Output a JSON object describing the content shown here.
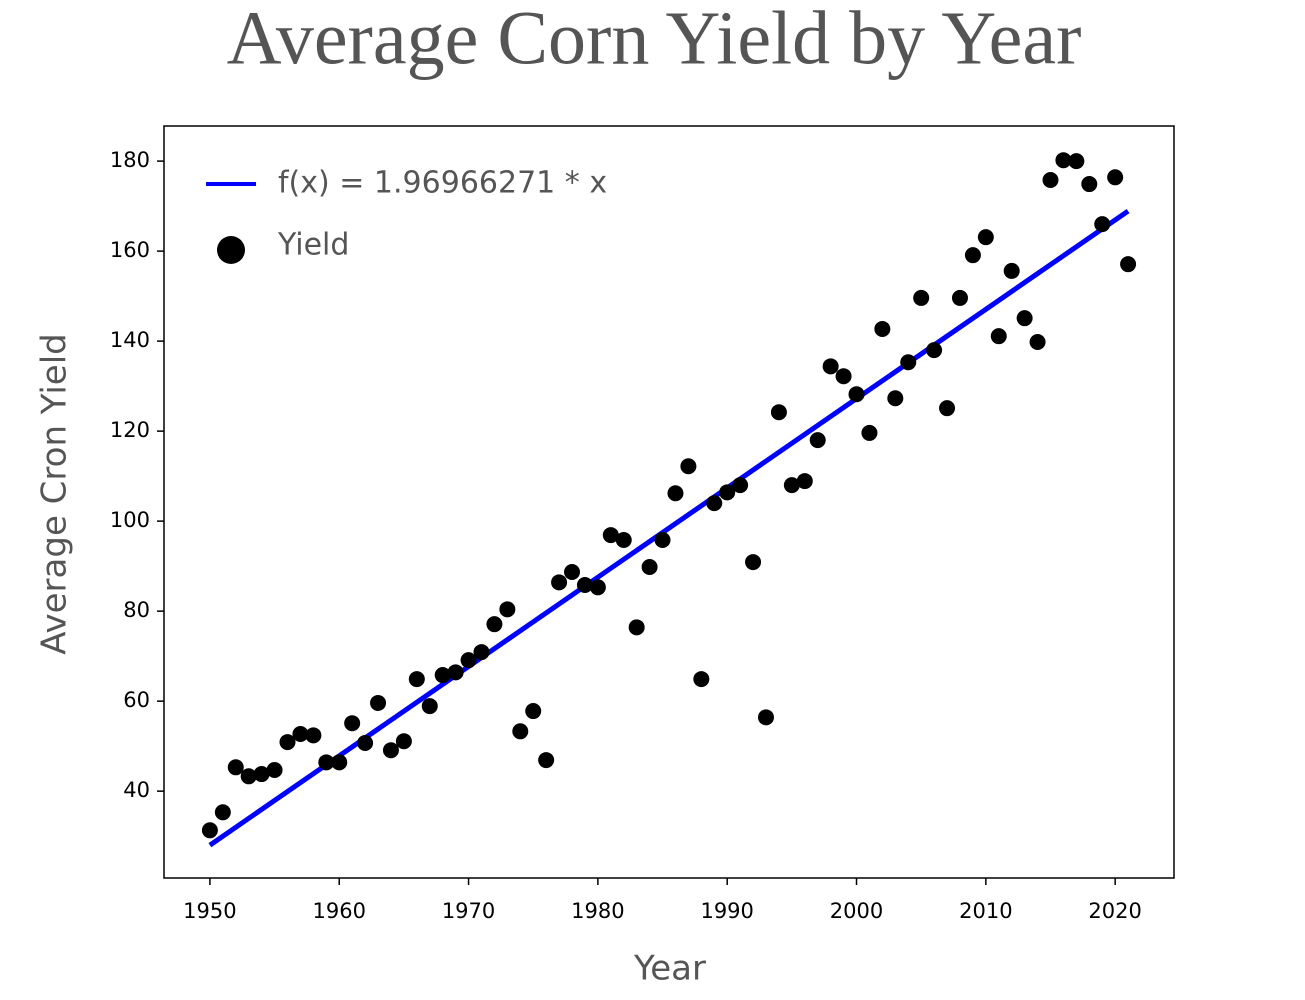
{
  "chart_data": {
    "type": "scatter",
    "title": "Average Corn Yield by Year",
    "x_label": "Year",
    "y_label": "Average Cron Yield",
    "xlim": [
      1946.45,
      2024.55
    ],
    "ylim": [
      20.7,
      187.8
    ],
    "xticks": [
      1950,
      1960,
      1970,
      1980,
      1990,
      2000,
      2010,
      2020
    ],
    "yticks": [
      40,
      60,
      80,
      100,
      120,
      140,
      160,
      180
    ],
    "legend": "upper left",
    "series": [
      {
        "name": "f(x) = 1.96966271 * x",
        "mode": "line",
        "color": "#0000ff",
        "x": [
          1950,
          2021
        ],
        "values": [
          28.0,
          168.9
        ]
      },
      {
        "name": "Yield",
        "mode": "markers",
        "color": "#000000",
        "x": [
          1950,
          1951,
          1952,
          1953,
          1954,
          1955,
          1956,
          1957,
          1958,
          1959,
          1960,
          1961,
          1962,
          1963,
          1964,
          1965,
          1966,
          1967,
          1968,
          1969,
          1970,
          1971,
          1972,
          1973,
          1974,
          1975,
          1976,
          1977,
          1978,
          1979,
          1980,
          1981,
          1982,
          1983,
          1984,
          1985,
          1986,
          1987,
          1988,
          1989,
          1990,
          1991,
          1992,
          1993,
          1994,
          1995,
          1996,
          1997,
          1998,
          1999,
          2000,
          2001,
          2002,
          2003,
          2004,
          2005,
          2006,
          2007,
          2008,
          2009,
          2010,
          2011,
          2012,
          2013,
          2014,
          2015,
          2016,
          2017,
          2018,
          2019,
          2020,
          2021
        ],
        "values": [
          31.3,
          35.3,
          45.3,
          43.3,
          43.8,
          44.7,
          50.9,
          52.7,
          52.4,
          46.4,
          46.4,
          55.1,
          50.7,
          59.6,
          49.1,
          51.1,
          64.9,
          58.9,
          65.8,
          66.4,
          69.1,
          70.9,
          77.1,
          80.4,
          53.3,
          57.8,
          46.9,
          86.4,
          88.7,
          85.8,
          85.3,
          96.9,
          95.8,
          76.4,
          89.8,
          95.8,
          106.2,
          112.2,
          64.9,
          104.0,
          106.4,
          108.0,
          90.9,
          56.4,
          124.2,
          108.0,
          108.9,
          118.0,
          134.4,
          132.2,
          128.2,
          119.6,
          142.7,
          127.3,
          135.3,
          149.6,
          138.0,
          125.1,
          149.6,
          159.1,
          163.1,
          141.1,
          155.6,
          145.1,
          139.8,
          175.8,
          180.2,
          180.0,
          174.9,
          166.0,
          176.4,
          157.1
        ]
      }
    ]
  }
}
